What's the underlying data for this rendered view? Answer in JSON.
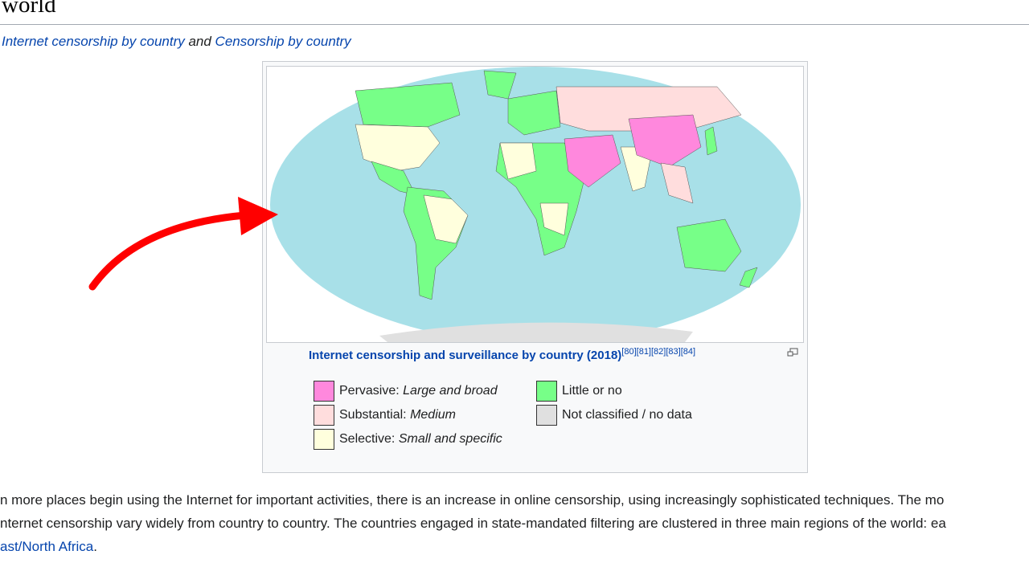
{
  "heading": "world",
  "hatnote": {
    "link1": "Internet censorship by country",
    "and": " and ",
    "link2": "Censorship by country"
  },
  "figure": {
    "caption": "Internet censorship and surveillance by country (2018)",
    "refs": "[80][81][82][83][84]",
    "legend": [
      {
        "label": "Pervasive: ",
        "desc": "Large and broad",
        "color": "#ff88dd"
      },
      {
        "label": "Substantial: ",
        "desc": "Medium",
        "color": "#ffdddd"
      },
      {
        "label": "Selective: ",
        "desc": "Small and specific",
        "color": "#ffffdd"
      },
      {
        "label": "Little or no",
        "desc": "",
        "color": "#77ff88"
      },
      {
        "label": "Not classified / no data",
        "desc": "",
        "color": "#e0e0e0"
      }
    ],
    "ocean_color": "#a8e0e8"
  },
  "paragraph": {
    "line1": "n more places begin using the Internet for important activities, there is an increase in online censorship, using increasingly sophisticated techniques. The mo",
    "line2": "nternet censorship vary widely from country to country. The countries engaged in state-mandated filtering are clustered in three main regions of the world: ea",
    "line3_link": "ast/North Africa",
    "line3_end": "."
  }
}
